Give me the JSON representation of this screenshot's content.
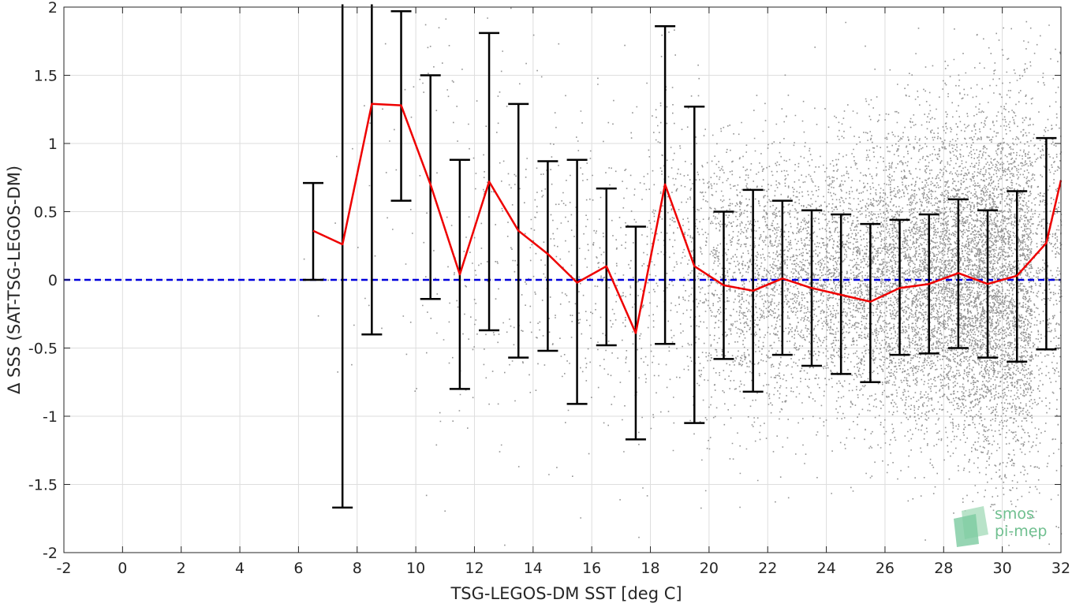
{
  "chart_data": {
    "type": "scatter",
    "xlabel": "TSG-LEGOS-DM SST [deg C]",
    "ylabel": "Δ SSS (SAT-TSG-LEGOS-DM)",
    "xlim": [
      -2,
      32
    ],
    "ylim": [
      -2,
      2
    ],
    "x_ticks": [
      -2,
      0,
      2,
      4,
      6,
      8,
      10,
      12,
      14,
      16,
      18,
      20,
      22,
      24,
      26,
      28,
      30,
      32
    ],
    "y_ticks": [
      -2,
      -1.5,
      -1,
      -0.5,
      0,
      0.5,
      1,
      1.5,
      2
    ],
    "grid": true,
    "reference_line": {
      "y": 0,
      "style": "dashed",
      "color": "#0000dd"
    },
    "mean_series": {
      "color": "#ee0000",
      "x": [
        6.5,
        7.5,
        8.5,
        9.5,
        10.5,
        11.5,
        12.5,
        13.5,
        14.5,
        15.5,
        16.5,
        17.5,
        18.5,
        19.5,
        20.5,
        21.5,
        22.5,
        23.5,
        24.5,
        25.5,
        26.5,
        27.5,
        28.5,
        29.5,
        30.5,
        31.5,
        32.0
      ],
      "y": [
        0.36,
        0.26,
        1.29,
        1.28,
        0.7,
        0.04,
        0.72,
        0.36,
        0.19,
        -0.02,
        0.1,
        -0.39,
        0.7,
        0.1,
        -0.04,
        -0.08,
        0.01,
        -0.06,
        -0.11,
        -0.16,
        -0.06,
        -0.03,
        0.05,
        -0.03,
        0.03,
        0.27,
        0.73
      ]
    },
    "error_bars": {
      "color": "#000000",
      "x": [
        6.5,
        7.5,
        8.5,
        9.5,
        10.5,
        11.5,
        12.5,
        13.5,
        14.5,
        15.5,
        16.5,
        17.5,
        18.5,
        19.5,
        20.5,
        21.5,
        22.5,
        23.5,
        24.5,
        25.5,
        26.5,
        27.5,
        28.5,
        29.5,
        30.5,
        31.5
      ],
      "upper": [
        0.71,
        2.2,
        2.2,
        1.97,
        1.5,
        0.88,
        1.81,
        1.29,
        0.87,
        0.88,
        0.67,
        0.39,
        1.86,
        1.27,
        0.5,
        0.66,
        0.58,
        0.51,
        0.48,
        0.41,
        0.44,
        0.48,
        0.59,
        0.51,
        0.65,
        1.04
      ],
      "lower": [
        0.0,
        -1.67,
        -0.4,
        0.58,
        -0.14,
        -0.8,
        -0.37,
        -0.57,
        -0.52,
        -0.91,
        -0.48,
        -1.17,
        -0.47,
        -1.05,
        -0.58,
        -0.82,
        -0.55,
        -0.63,
        -0.69,
        -0.75,
        -0.55,
        -0.54,
        -0.5,
        -0.57,
        -0.6,
        -0.51
      ]
    },
    "scatter": {
      "color": "#808080",
      "description_hint": "dense cloud of individual points",
      "density_by_x": [
        [
          6.5,
          8,
          0.45
        ],
        [
          7.5,
          15,
          0.6
        ],
        [
          8.5,
          20,
          0.75
        ],
        [
          9.5,
          30,
          0.8
        ],
        [
          10.5,
          60,
          0.85
        ],
        [
          11.5,
          90,
          0.8
        ],
        [
          12.5,
          110,
          0.7
        ],
        [
          13.5,
          110,
          0.65
        ],
        [
          14.5,
          140,
          0.6
        ],
        [
          15.5,
          160,
          0.6
        ],
        [
          16.5,
          170,
          0.6
        ],
        [
          17.5,
          220,
          0.6
        ],
        [
          18.5,
          300,
          0.65
        ],
        [
          19.5,
          420,
          0.6
        ],
        [
          20.5,
          650,
          0.5
        ],
        [
          21.5,
          900,
          0.5
        ],
        [
          22.5,
          1000,
          0.48
        ],
        [
          23.5,
          1000,
          0.48
        ],
        [
          24.5,
          1200,
          0.5
        ],
        [
          25.5,
          1500,
          0.52
        ],
        [
          26.5,
          1900,
          0.55
        ],
        [
          27.5,
          2200,
          0.56
        ],
        [
          28.5,
          2600,
          0.58
        ],
        [
          29.5,
          3000,
          0.62
        ],
        [
          30.5,
          2600,
          0.68
        ],
        [
          31.5,
          900,
          0.75
        ]
      ]
    }
  },
  "logo": {
    "line1": "smos",
    "line2": "pi-mep"
  }
}
